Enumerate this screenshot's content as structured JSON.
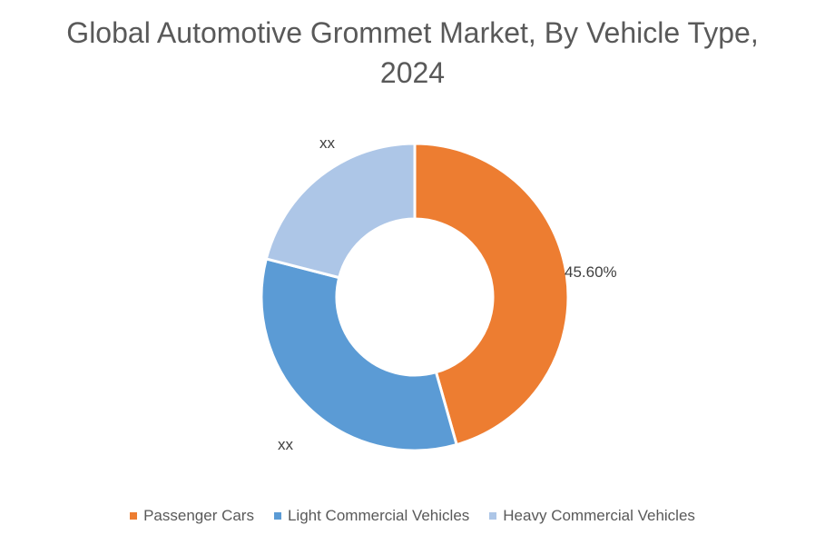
{
  "chart_data": {
    "type": "pie",
    "variant": "donut",
    "title": "Global Automotive Grommet Market, By Vehicle Type, 2024",
    "categories": [
      "Passenger Cars",
      "Light Commercial Vehicles",
      "Heavy Commercial Vehicles"
    ],
    "values": [
      45.6,
      33.4,
      21.0
    ],
    "data_labels": [
      "45.60%",
      "xx",
      "xx"
    ],
    "colors": [
      "#ED7D31",
      "#5B9BD5",
      "#ADC6E7"
    ],
    "legend_position": "bottom"
  }
}
